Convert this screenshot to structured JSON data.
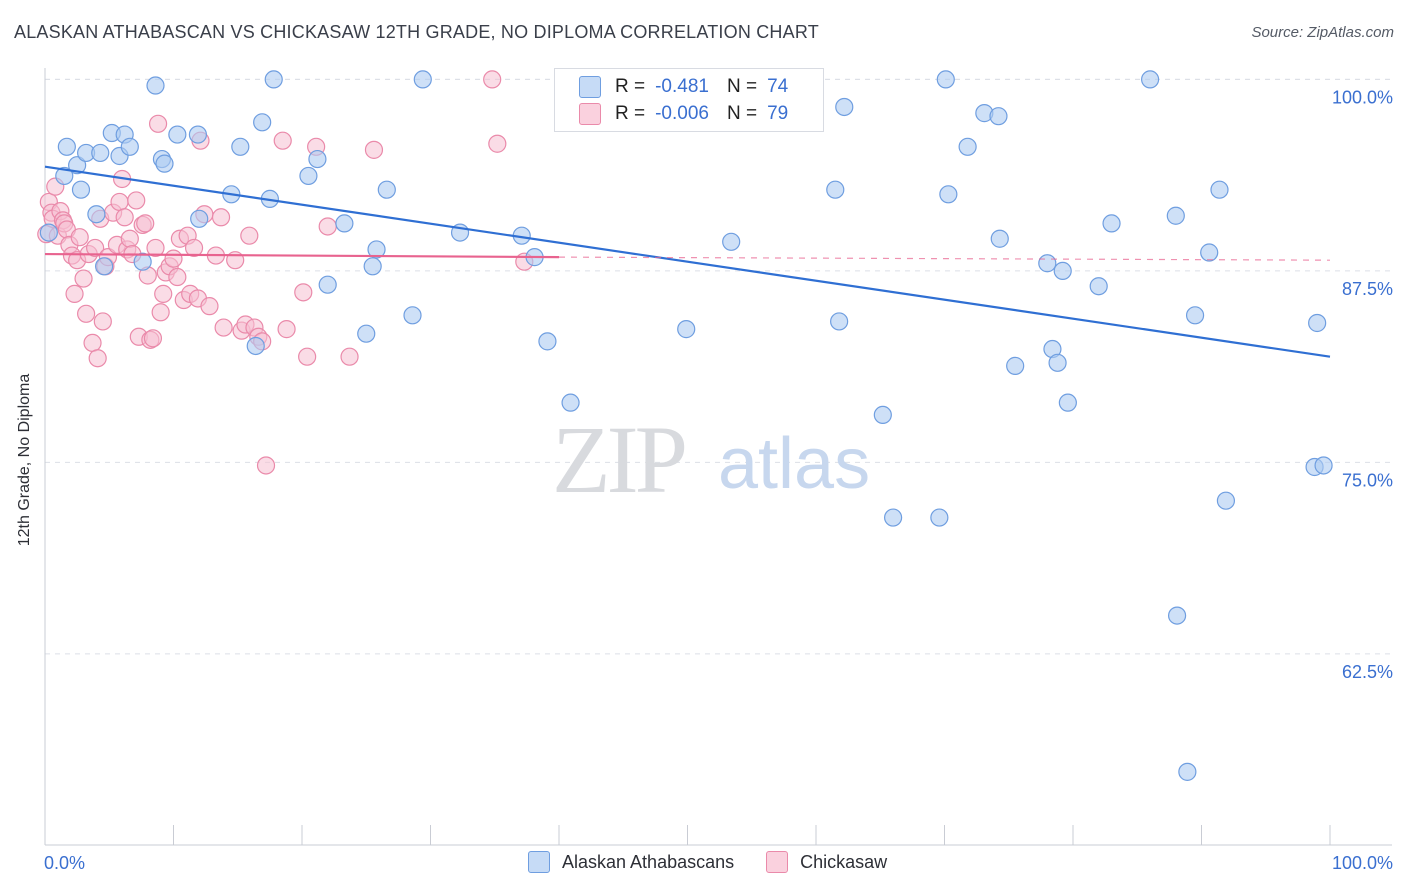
{
  "title": "ALASKAN ATHABASCAN VS CHICKASAW 12TH GRADE, NO DIPLOMA CORRELATION CHART",
  "source": "Source: ZipAtlas.com",
  "watermark": {
    "zip": "ZIP",
    "atlas": "atlas"
  },
  "legend": {
    "rows": [
      {
        "r_label": "R =",
        "r_value": "-0.481",
        "n_label": "N =",
        "n_value": "74"
      },
      {
        "r_label": "R =",
        "r_value": "-0.006",
        "n_label": "N =",
        "n_value": "79"
      }
    ]
  },
  "bottom_legend": [
    "Alaskan Athabascans",
    "Chickasaw"
  ],
  "colors": {
    "blue_fill": "#aecbf2",
    "blue_stroke": "#6f9ee0",
    "blue_line": "#2f6fd3",
    "pink_fill": "#f6bfd1",
    "pink_stroke": "#ea8aaa",
    "pink_line": "#e8638f",
    "tick_label": "#3a6fd0",
    "grid": "#dcdfe6"
  },
  "chart_data": {
    "type": "scatter",
    "title": "ALASKAN ATHABASCAN VS CHICKASAW 12TH GRADE, NO DIPLOMA CORRELATION CHART",
    "xlabel": "",
    "ylabel": "12th Grade, No Diploma",
    "xlim": [
      0,
      100
    ],
    "ylim": [
      50.0,
      102.5
    ],
    "x_tick_labels": [
      "0.0%",
      "100.0%"
    ],
    "y_ticks": [
      100.0,
      87.5,
      75.0,
      62.5
    ],
    "y_tick_labels": [
      "100.0%",
      "87.5%",
      "75.0%",
      "62.5%"
    ],
    "grid": true,
    "legend_placement": "top-center",
    "series": [
      {
        "name": "Alaskan Athabascans",
        "trend": {
          "x": [
            0,
            100
          ],
          "y": [
            94.3,
            81.9
          ]
        },
        "points": [
          [
            0.3,
            90.0
          ],
          [
            1.5,
            93.7
          ],
          [
            1.7,
            95.6
          ],
          [
            2.5,
            94.4
          ],
          [
            2.8,
            92.8
          ],
          [
            3.2,
            95.2
          ],
          [
            4.0,
            91.2
          ],
          [
            4.3,
            95.2
          ],
          [
            4.6,
            87.8
          ],
          [
            5.2,
            96.5
          ],
          [
            5.8,
            95.0
          ],
          [
            6.2,
            96.4
          ],
          [
            6.6,
            95.6
          ],
          [
            7.6,
            88.1
          ],
          [
            8.6,
            99.6
          ],
          [
            9.1,
            94.8
          ],
          [
            9.3,
            94.5
          ],
          [
            10.3,
            96.4
          ],
          [
            11.9,
            96.4
          ],
          [
            12.0,
            90.9
          ],
          [
            14.5,
            92.5
          ],
          [
            15.2,
            95.6
          ],
          [
            16.4,
            82.6
          ],
          [
            16.9,
            97.2
          ],
          [
            17.5,
            92.2
          ],
          [
            17.8,
            100.0
          ],
          [
            20.5,
            93.7
          ],
          [
            21.2,
            94.8
          ],
          [
            22.0,
            86.6
          ],
          [
            23.3,
            90.6
          ],
          [
            25.0,
            83.4
          ],
          [
            25.5,
            87.8
          ],
          [
            25.8,
            88.9
          ],
          [
            26.6,
            92.8
          ],
          [
            28.6,
            84.6
          ],
          [
            29.4,
            100.0
          ],
          [
            32.3,
            90.0
          ],
          [
            37.1,
            89.8
          ],
          [
            38.1,
            88.4
          ],
          [
            39.1,
            82.9
          ],
          [
            40.9,
            78.9
          ],
          [
            49.9,
            83.7
          ],
          [
            53.4,
            89.4
          ],
          [
            61.5,
            92.8
          ],
          [
            61.8,
            84.2
          ],
          [
            62.2,
            98.2
          ],
          [
            65.2,
            78.1
          ],
          [
            66.0,
            71.4
          ],
          [
            69.6,
            71.4
          ],
          [
            70.1,
            100.0
          ],
          [
            70.3,
            92.5
          ],
          [
            71.8,
            95.6
          ],
          [
            73.1,
            97.8
          ],
          [
            74.2,
            97.6
          ],
          [
            74.3,
            89.6
          ],
          [
            75.5,
            81.3
          ],
          [
            78.0,
            88.0
          ],
          [
            78.4,
            82.4
          ],
          [
            78.8,
            81.5
          ],
          [
            79.2,
            87.5
          ],
          [
            79.6,
            78.9
          ],
          [
            82.0,
            86.5
          ],
          [
            83.0,
            90.6
          ],
          [
            86.0,
            100.0
          ],
          [
            88.0,
            91.1
          ],
          [
            88.1,
            65.0
          ],
          [
            88.9,
            54.8
          ],
          [
            89.5,
            84.6
          ],
          [
            90.6,
            88.7
          ],
          [
            91.4,
            92.8
          ],
          [
            91.9,
            72.5
          ],
          [
            98.8,
            74.7
          ],
          [
            99.0,
            84.1
          ],
          [
            99.5,
            74.8
          ]
        ]
      },
      {
        "name": "Chickasaw",
        "trend": {
          "x": [
            0,
            40
          ],
          "y": [
            88.6,
            88.4
          ]
        },
        "trend_extension": {
          "x": [
            40,
            100
          ],
          "y": [
            88.4,
            88.2
          ]
        },
        "points": [
          [
            0.1,
            89.9
          ],
          [
            0.3,
            92.0
          ],
          [
            0.5,
            91.3
          ],
          [
            0.6,
            90.9
          ],
          [
            0.8,
            93.0
          ],
          [
            1.0,
            89.8
          ],
          [
            1.2,
            91.4
          ],
          [
            1.4,
            90.8
          ],
          [
            1.5,
            90.6
          ],
          [
            1.7,
            90.2
          ],
          [
            1.9,
            89.2
          ],
          [
            2.1,
            88.5
          ],
          [
            2.3,
            86.0
          ],
          [
            2.5,
            88.2
          ],
          [
            2.7,
            89.7
          ],
          [
            3.0,
            87.0
          ],
          [
            3.2,
            84.7
          ],
          [
            3.4,
            88.6
          ],
          [
            3.7,
            82.8
          ],
          [
            3.9,
            89.0
          ],
          [
            4.1,
            81.8
          ],
          [
            4.3,
            90.9
          ],
          [
            4.5,
            84.2
          ],
          [
            4.7,
            87.8
          ],
          [
            4.9,
            88.4
          ],
          [
            5.3,
            91.3
          ],
          [
            5.6,
            89.2
          ],
          [
            5.8,
            92.0
          ],
          [
            6.0,
            93.5
          ],
          [
            6.2,
            91.0
          ],
          [
            6.4,
            88.9
          ],
          [
            6.6,
            89.6
          ],
          [
            6.8,
            88.6
          ],
          [
            7.1,
            92.1
          ],
          [
            7.3,
            83.2
          ],
          [
            7.6,
            90.5
          ],
          [
            7.8,
            90.6
          ],
          [
            8.0,
            87.2
          ],
          [
            8.2,
            83.0
          ],
          [
            8.4,
            83.1
          ],
          [
            8.6,
            89.0
          ],
          [
            8.8,
            97.1
          ],
          [
            9.0,
            84.8
          ],
          [
            9.2,
            86.0
          ],
          [
            9.4,
            87.4
          ],
          [
            9.7,
            87.8
          ],
          [
            10.0,
            88.3
          ],
          [
            10.3,
            87.1
          ],
          [
            10.5,
            89.6
          ],
          [
            10.8,
            85.6
          ],
          [
            11.1,
            89.8
          ],
          [
            11.3,
            86.0
          ],
          [
            11.6,
            89.0
          ],
          [
            11.9,
            85.7
          ],
          [
            12.1,
            96.0
          ],
          [
            12.4,
            91.2
          ],
          [
            12.8,
            85.2
          ],
          [
            13.3,
            88.5
          ],
          [
            13.7,
            91.0
          ],
          [
            13.9,
            83.8
          ],
          [
            14.8,
            88.2
          ],
          [
            15.3,
            83.6
          ],
          [
            15.6,
            84.0
          ],
          [
            15.9,
            89.8
          ],
          [
            16.3,
            83.8
          ],
          [
            16.6,
            83.2
          ],
          [
            16.9,
            82.9
          ],
          [
            17.2,
            74.8
          ],
          [
            18.5,
            96.0
          ],
          [
            18.8,
            83.7
          ],
          [
            20.1,
            86.1
          ],
          [
            20.4,
            81.9
          ],
          [
            21.1,
            95.6
          ],
          [
            22.0,
            90.4
          ],
          [
            23.7,
            81.9
          ],
          [
            25.6,
            95.4
          ],
          [
            34.8,
            100.0
          ],
          [
            35.2,
            95.8
          ],
          [
            37.3,
            88.1
          ]
        ]
      }
    ]
  }
}
